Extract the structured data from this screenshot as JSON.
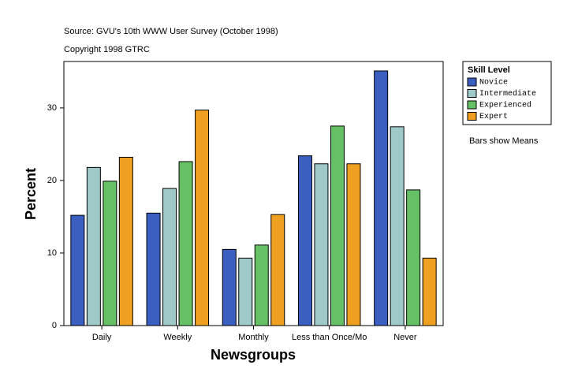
{
  "chart_data": {
    "type": "bar",
    "title": "Source: GVU's 10th WWW User Survey (October 1998)",
    "subtitle": "Copyright 1998 GTRC",
    "x_label": "Newsgroups",
    "y_label": "Percent",
    "note": "Bars show Means",
    "legend_title": "Skill Level",
    "categories": [
      "Daily",
      "Weekly",
      "Monthly",
      "Less than Once/Mo",
      "Never"
    ],
    "series": [
      {
        "name": "Novice",
        "color": "#3a5fc0",
        "values": [
          15.2,
          15.5,
          10.5,
          23.4,
          35.1
        ]
      },
      {
        "name": "Intermediate",
        "color": "#9fc8c8",
        "values": [
          21.8,
          18.9,
          9.3,
          22.3,
          27.4
        ]
      },
      {
        "name": "Experienced",
        "color": "#66c066",
        "values": [
          19.9,
          22.6,
          11.1,
          27.5,
          18.7
        ]
      },
      {
        "name": "Expert",
        "color": "#f0a020",
        "values": [
          23.2,
          29.7,
          15.3,
          22.3,
          9.3
        ]
      }
    ],
    "ylim": [
      0,
      36.4
    ],
    "yticks": [
      0,
      10,
      20,
      30
    ]
  }
}
